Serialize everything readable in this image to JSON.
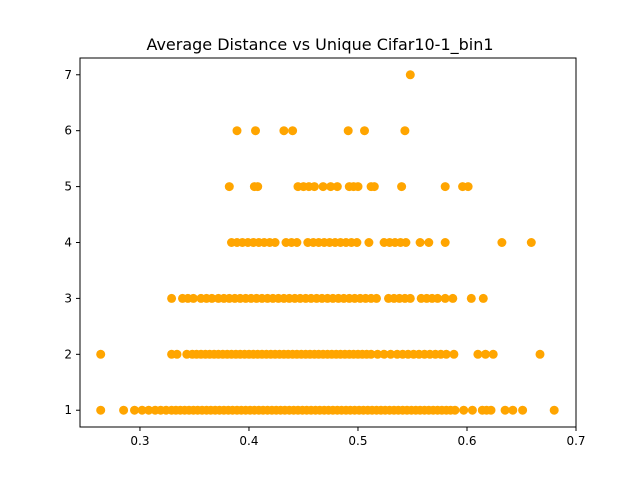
{
  "chart_data": {
    "type": "scatter",
    "title": "Average Distance vs Unique Cifar10-1_bin1",
    "xlabel": "",
    "ylabel": "",
    "xlim": [
      0.245,
      0.7
    ],
    "ylim": [
      0.7,
      7.3
    ],
    "xticks": [
      "0.3",
      "0.4",
      "0.5",
      "0.6",
      "0.7"
    ],
    "yticks": [
      "1",
      "2",
      "3",
      "4",
      "5",
      "6",
      "7"
    ],
    "marker_color": "#ffa500",
    "grid": false,
    "series": [
      {
        "points": [
          [
            0.264,
            1
          ],
          [
            0.285,
            1
          ],
          [
            0.295,
            1
          ],
          [
            0.302,
            1
          ],
          [
            0.308,
            1
          ],
          [
            0.314,
            1
          ],
          [
            0.319,
            1
          ],
          [
            0.324,
            1
          ],
          [
            0.329,
            1
          ],
          [
            0.333,
            1
          ],
          [
            0.337,
            1
          ],
          [
            0.341,
            1
          ],
          [
            0.345,
            1
          ],
          [
            0.349,
            1
          ],
          [
            0.353,
            1
          ],
          [
            0.357,
            1
          ],
          [
            0.361,
            1
          ],
          [
            0.365,
            1
          ],
          [
            0.369,
            1
          ],
          [
            0.373,
            1
          ],
          [
            0.377,
            1
          ],
          [
            0.381,
            1
          ],
          [
            0.385,
            1
          ],
          [
            0.389,
            1
          ],
          [
            0.393,
            1
          ],
          [
            0.397,
            1
          ],
          [
            0.401,
            1
          ],
          [
            0.405,
            1
          ],
          [
            0.409,
            1
          ],
          [
            0.413,
            1
          ],
          [
            0.417,
            1
          ],
          [
            0.421,
            1
          ],
          [
            0.425,
            1
          ],
          [
            0.429,
            1
          ],
          [
            0.433,
            1
          ],
          [
            0.437,
            1
          ],
          [
            0.441,
            1
          ],
          [
            0.445,
            1
          ],
          [
            0.449,
            1
          ],
          [
            0.453,
            1
          ],
          [
            0.457,
            1
          ],
          [
            0.461,
            1
          ],
          [
            0.465,
            1
          ],
          [
            0.469,
            1
          ],
          [
            0.473,
            1
          ],
          [
            0.477,
            1
          ],
          [
            0.481,
            1
          ],
          [
            0.485,
            1
          ],
          [
            0.489,
            1
          ],
          [
            0.493,
            1
          ],
          [
            0.497,
            1
          ],
          [
            0.501,
            1
          ],
          [
            0.505,
            1
          ],
          [
            0.509,
            1
          ],
          [
            0.513,
            1
          ],
          [
            0.517,
            1
          ],
          [
            0.521,
            1
          ],
          [
            0.525,
            1
          ],
          [
            0.529,
            1
          ],
          [
            0.533,
            1
          ],
          [
            0.537,
            1
          ],
          [
            0.541,
            1
          ],
          [
            0.545,
            1
          ],
          [
            0.549,
            1
          ],
          [
            0.553,
            1
          ],
          [
            0.557,
            1
          ],
          [
            0.561,
            1
          ],
          [
            0.565,
            1
          ],
          [
            0.569,
            1
          ],
          [
            0.573,
            1
          ],
          [
            0.577,
            1
          ],
          [
            0.581,
            1
          ],
          [
            0.585,
            1
          ],
          [
            0.589,
            1
          ],
          [
            0.597,
            1
          ],
          [
            0.605,
            1
          ],
          [
            0.614,
            1
          ],
          [
            0.618,
            1
          ],
          [
            0.622,
            1
          ],
          [
            0.635,
            1
          ],
          [
            0.642,
            1
          ],
          [
            0.651,
            1
          ],
          [
            0.68,
            1
          ],
          [
            0.264,
            2
          ],
          [
            0.329,
            2
          ],
          [
            0.334,
            2
          ],
          [
            0.343,
            2
          ],
          [
            0.348,
            2
          ],
          [
            0.352,
            2
          ],
          [
            0.356,
            2
          ],
          [
            0.36,
            2
          ],
          [
            0.364,
            2
          ],
          [
            0.368,
            2
          ],
          [
            0.372,
            2
          ],
          [
            0.376,
            2
          ],
          [
            0.38,
            2
          ],
          [
            0.384,
            2
          ],
          [
            0.388,
            2
          ],
          [
            0.392,
            2
          ],
          [
            0.396,
            2
          ],
          [
            0.4,
            2
          ],
          [
            0.404,
            2
          ],
          [
            0.408,
            2
          ],
          [
            0.412,
            2
          ],
          [
            0.416,
            2
          ],
          [
            0.42,
            2
          ],
          [
            0.424,
            2
          ],
          [
            0.428,
            2
          ],
          [
            0.432,
            2
          ],
          [
            0.436,
            2
          ],
          [
            0.44,
            2
          ],
          [
            0.444,
            2
          ],
          [
            0.448,
            2
          ],
          [
            0.452,
            2
          ],
          [
            0.456,
            2
          ],
          [
            0.46,
            2
          ],
          [
            0.464,
            2
          ],
          [
            0.468,
            2
          ],
          [
            0.472,
            2
          ],
          [
            0.476,
            2
          ],
          [
            0.48,
            2
          ],
          [
            0.484,
            2
          ],
          [
            0.488,
            2
          ],
          [
            0.492,
            2
          ],
          [
            0.496,
            2
          ],
          [
            0.5,
            2
          ],
          [
            0.504,
            2
          ],
          [
            0.508,
            2
          ],
          [
            0.512,
            2
          ],
          [
            0.518,
            2
          ],
          [
            0.524,
            2
          ],
          [
            0.53,
            2
          ],
          [
            0.536,
            2
          ],
          [
            0.541,
            2
          ],
          [
            0.546,
            2
          ],
          [
            0.551,
            2
          ],
          [
            0.556,
            2
          ],
          [
            0.561,
            2
          ],
          [
            0.566,
            2
          ],
          [
            0.571,
            2
          ],
          [
            0.576,
            2
          ],
          [
            0.581,
            2
          ],
          [
            0.588,
            2
          ],
          [
            0.61,
            2
          ],
          [
            0.617,
            2
          ],
          [
            0.624,
            2
          ],
          [
            0.667,
            2
          ],
          [
            0.329,
            3
          ],
          [
            0.339,
            3
          ],
          [
            0.344,
            3
          ],
          [
            0.349,
            3
          ],
          [
            0.356,
            3
          ],
          [
            0.361,
            3
          ],
          [
            0.366,
            3
          ],
          [
            0.372,
            3
          ],
          [
            0.377,
            3
          ],
          [
            0.382,
            3
          ],
          [
            0.387,
            3
          ],
          [
            0.392,
            3
          ],
          [
            0.397,
            3
          ],
          [
            0.402,
            3
          ],
          [
            0.407,
            3
          ],
          [
            0.412,
            3
          ],
          [
            0.417,
            3
          ],
          [
            0.422,
            3
          ],
          [
            0.427,
            3
          ],
          [
            0.432,
            3
          ],
          [
            0.437,
            3
          ],
          [
            0.442,
            3
          ],
          [
            0.447,
            3
          ],
          [
            0.452,
            3
          ],
          [
            0.457,
            3
          ],
          [
            0.462,
            3
          ],
          [
            0.467,
            3
          ],
          [
            0.472,
            3
          ],
          [
            0.477,
            3
          ],
          [
            0.482,
            3
          ],
          [
            0.487,
            3
          ],
          [
            0.492,
            3
          ],
          [
            0.497,
            3
          ],
          [
            0.502,
            3
          ],
          [
            0.507,
            3
          ],
          [
            0.512,
            3
          ],
          [
            0.517,
            3
          ],
          [
            0.528,
            3
          ],
          [
            0.533,
            3
          ],
          [
            0.538,
            3
          ],
          [
            0.543,
            3
          ],
          [
            0.548,
            3
          ],
          [
            0.558,
            3
          ],
          [
            0.563,
            3
          ],
          [
            0.568,
            3
          ],
          [
            0.573,
            3
          ],
          [
            0.58,
            3
          ],
          [
            0.587,
            3
          ],
          [
            0.604,
            3
          ],
          [
            0.615,
            3
          ],
          [
            0.384,
            4
          ],
          [
            0.389,
            4
          ],
          [
            0.394,
            4
          ],
          [
            0.399,
            4
          ],
          [
            0.404,
            4
          ],
          [
            0.409,
            4
          ],
          [
            0.414,
            4
          ],
          [
            0.419,
            4
          ],
          [
            0.424,
            4
          ],
          [
            0.434,
            4
          ],
          [
            0.439,
            4
          ],
          [
            0.444,
            4
          ],
          [
            0.454,
            4
          ],
          [
            0.459,
            4
          ],
          [
            0.464,
            4
          ],
          [
            0.469,
            4
          ],
          [
            0.474,
            4
          ],
          [
            0.479,
            4
          ],
          [
            0.484,
            4
          ],
          [
            0.489,
            4
          ],
          [
            0.494,
            4
          ],
          [
            0.499,
            4
          ],
          [
            0.51,
            4
          ],
          [
            0.524,
            4
          ],
          [
            0.529,
            4
          ],
          [
            0.534,
            4
          ],
          [
            0.539,
            4
          ],
          [
            0.544,
            4
          ],
          [
            0.557,
            4
          ],
          [
            0.565,
            4
          ],
          [
            0.58,
            4
          ],
          [
            0.632,
            4
          ],
          [
            0.659,
            4
          ],
          [
            0.382,
            5
          ],
          [
            0.405,
            5
          ],
          [
            0.408,
            5
          ],
          [
            0.445,
            5
          ],
          [
            0.45,
            5
          ],
          [
            0.455,
            5
          ],
          [
            0.46,
            5
          ],
          [
            0.468,
            5
          ],
          [
            0.475,
            5
          ],
          [
            0.481,
            5
          ],
          [
            0.492,
            5
          ],
          [
            0.496,
            5
          ],
          [
            0.5,
            5
          ],
          [
            0.512,
            5
          ],
          [
            0.515,
            5
          ],
          [
            0.54,
            5
          ],
          [
            0.58,
            5
          ],
          [
            0.596,
            5
          ],
          [
            0.601,
            5
          ],
          [
            0.389,
            6
          ],
          [
            0.406,
            6
          ],
          [
            0.432,
            6
          ],
          [
            0.44,
            6
          ],
          [
            0.491,
            6
          ],
          [
            0.506,
            6
          ],
          [
            0.543,
            6
          ],
          [
            0.548,
            7
          ]
        ]
      }
    ]
  }
}
